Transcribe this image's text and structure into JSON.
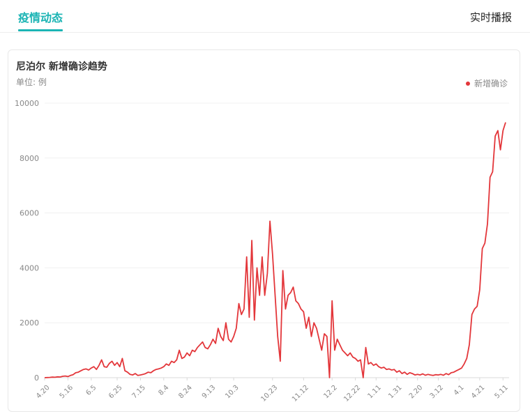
{
  "tabs": {
    "active": "疫情动态",
    "right": "实时播报"
  },
  "card": {
    "title": "尼泊尔 新增确诊趋势",
    "unit": "单位: 例"
  },
  "colors": {
    "accent": "#1bb4b4",
    "series": "#e3363a"
  },
  "chart_data": {
    "type": "line",
    "title": "尼泊尔 新增确诊趋势",
    "ylabel": "单位: 例",
    "ylim": [
      0,
      10000
    ],
    "yticks": [
      0,
      2000,
      4000,
      6000,
      8000,
      10000
    ],
    "x_tick_labels": [
      "4.20",
      "5.16",
      "6.5",
      "6.25",
      "7.15",
      "8.4",
      "8.24",
      "9.13",
      "10.3",
      "10.23",
      "11.12",
      "12.2",
      "12.22",
      "1.11",
      "1.31",
      "2.20",
      "3.12",
      "4.1",
      "4.21",
      "5.11"
    ],
    "grid": true,
    "legend_position": "top-right",
    "series": [
      {
        "name": "新增确诊",
        "color": "#e3363a",
        "points": [
          [
            "4.20",
            0
          ],
          [
            null,
            5
          ],
          [
            null,
            10
          ],
          [
            null,
            20
          ],
          [
            null,
            15
          ],
          [
            null,
            30
          ],
          [
            null,
            25
          ],
          [
            null,
            50
          ],
          [
            null,
            60
          ],
          [
            "5.16",
            40
          ],
          [
            null,
            80
          ],
          [
            null,
            110
          ],
          [
            null,
            180
          ],
          [
            null,
            200
          ],
          [
            null,
            250
          ],
          [
            null,
            300
          ],
          [
            null,
            320
          ],
          [
            null,
            280
          ],
          [
            "6.5",
            350
          ],
          [
            null,
            400
          ],
          [
            null,
            300
          ],
          [
            null,
            450
          ],
          [
            null,
            650
          ],
          [
            null,
            400
          ],
          [
            null,
            380
          ],
          [
            null,
            520
          ],
          [
            null,
            600
          ],
          [
            null,
            450
          ],
          [
            "6.25",
            550
          ],
          [
            null,
            400
          ],
          [
            null,
            700
          ],
          [
            null,
            250
          ],
          [
            null,
            200
          ],
          [
            null,
            120
          ],
          [
            null,
            100
          ],
          [
            null,
            150
          ],
          [
            null,
            80
          ],
          [
            "7.15",
            100
          ],
          [
            null,
            120
          ],
          [
            null,
            150
          ],
          [
            null,
            200
          ],
          [
            null,
            180
          ],
          [
            null,
            250
          ],
          [
            null,
            300
          ],
          [
            null,
            320
          ],
          [
            null,
            350
          ],
          [
            "8.4",
            400
          ],
          [
            null,
            500
          ],
          [
            null,
            450
          ],
          [
            null,
            600
          ],
          [
            null,
            550
          ],
          [
            null,
            650
          ],
          [
            null,
            1000
          ],
          [
            null,
            700
          ],
          [
            null,
            750
          ],
          [
            "8.24",
            900
          ],
          [
            null,
            800
          ],
          [
            null,
            1000
          ],
          [
            null,
            950
          ],
          [
            null,
            1100
          ],
          [
            null,
            1200
          ],
          [
            null,
            1300
          ],
          [
            null,
            1100
          ],
          [
            null,
            1050
          ],
          [
            "9.13",
            1200
          ],
          [
            null,
            1400
          ],
          [
            null,
            1250
          ],
          [
            null,
            1800
          ],
          [
            null,
            1500
          ],
          [
            null,
            1350
          ],
          [
            null,
            2000
          ],
          [
            null,
            1400
          ],
          [
            null,
            1300
          ],
          [
            "10.3",
            1500
          ],
          [
            null,
            1800
          ],
          [
            null,
            2700
          ],
          [
            null,
            2300
          ],
          [
            null,
            2500
          ],
          [
            null,
            4400
          ],
          [
            null,
            2200
          ],
          [
            null,
            5000
          ],
          [
            null,
            2100
          ],
          [
            null,
            4000
          ],
          [
            null,
            3000
          ],
          [
            null,
            4400
          ],
          [
            null,
            3000
          ],
          [
            null,
            3800
          ],
          [
            null,
            5700
          ],
          [
            "10.23",
            4500
          ],
          [
            null,
            3000
          ],
          [
            null,
            1500
          ],
          [
            null,
            600
          ],
          [
            null,
            3900
          ],
          [
            null,
            2500
          ],
          [
            null,
            3000
          ],
          [
            null,
            3100
          ],
          [
            null,
            3300
          ],
          [
            null,
            2800
          ],
          [
            null,
            2700
          ],
          [
            null,
            2500
          ],
          [
            "11.12",
            2400
          ],
          [
            null,
            1800
          ],
          [
            null,
            2200
          ],
          [
            null,
            1500
          ],
          [
            null,
            2000
          ],
          [
            null,
            1800
          ],
          [
            null,
            1400
          ],
          [
            null,
            1000
          ],
          [
            null,
            1600
          ],
          [
            null,
            1500
          ],
          [
            null,
            0
          ],
          [
            "12.2",
            2800
          ],
          [
            null,
            1000
          ],
          [
            null,
            1400
          ],
          [
            null,
            1200
          ],
          [
            null,
            1000
          ],
          [
            null,
            900
          ],
          [
            null,
            800
          ],
          [
            null,
            900
          ],
          [
            null,
            750
          ],
          [
            "12.22",
            700
          ],
          [
            null,
            600
          ],
          [
            null,
            650
          ],
          [
            null,
            0
          ],
          [
            null,
            1100
          ],
          [
            null,
            500
          ],
          [
            null,
            550
          ],
          [
            null,
            450
          ],
          [
            "1.11",
            500
          ],
          [
            null,
            400
          ],
          [
            null,
            350
          ],
          [
            null,
            380
          ],
          [
            null,
            300
          ],
          [
            null,
            320
          ],
          [
            null,
            280
          ],
          [
            null,
            300
          ],
          [
            "1.31",
            200
          ],
          [
            null,
            250
          ],
          [
            null,
            150
          ],
          [
            null,
            200
          ],
          [
            null,
            120
          ],
          [
            null,
            180
          ],
          [
            null,
            150
          ],
          [
            null,
            100
          ],
          [
            "2.20",
            120
          ],
          [
            null,
            100
          ],
          [
            null,
            140
          ],
          [
            null,
            90
          ],
          [
            null,
            120
          ],
          [
            null,
            100
          ],
          [
            null,
            80
          ],
          [
            null,
            110
          ],
          [
            "3.12",
            100
          ],
          [
            null,
            120
          ],
          [
            null,
            90
          ],
          [
            null,
            150
          ],
          [
            null,
            110
          ],
          [
            null,
            180
          ],
          [
            null,
            200
          ],
          [
            null,
            250
          ],
          [
            "4.1",
            300
          ],
          [
            null,
            350
          ],
          [
            null,
            500
          ],
          [
            null,
            700
          ],
          [
            null,
            1200
          ],
          [
            null,
            2300
          ],
          [
            null,
            2500
          ],
          [
            null,
            2600
          ],
          [
            "4.21",
            3200
          ],
          [
            null,
            4700
          ],
          [
            null,
            4900
          ],
          [
            null,
            5600
          ],
          [
            null,
            7300
          ],
          [
            null,
            7500
          ],
          [
            null,
            8800
          ],
          [
            null,
            9000
          ],
          [
            null,
            8300
          ],
          [
            "5.11",
            9000
          ],
          [
            null,
            9300
          ]
        ]
      }
    ]
  }
}
